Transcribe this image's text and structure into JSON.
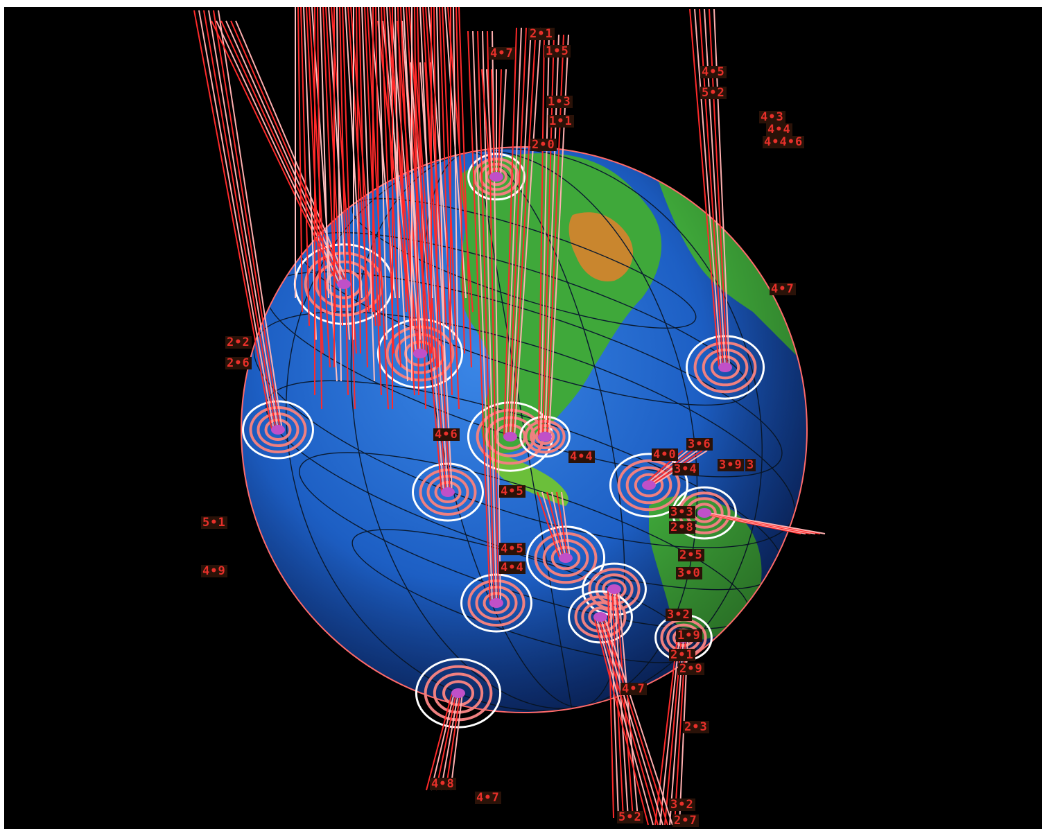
{
  "view": {
    "background_color": "#000000",
    "ocean_color": "#1d5fc4",
    "land_color": "#3fa83a",
    "highland_color": "#c9862e",
    "ring_color": "#f08080",
    "ring_highlight_color": "#ffffff",
    "stem_color": "#ff2a2a",
    "epicenter_color": "#c050c8",
    "label_color": "#e8302a"
  },
  "magnitude_labels": [
    "4•5",
    "5•2",
    "4•3",
    "4•4",
    "4•4•6",
    "4•7",
    "2•1",
    "1•5",
    "1•3",
    "1•1",
    "2•0",
    "4•7",
    "5•1",
    "4•9",
    "2•6",
    "2•2",
    "4•6",
    "4•0",
    "3•6",
    "3•4",
    "3•9",
    "3",
    "4•4",
    "4•5",
    "4•4",
    "4•5",
    "3•3",
    "2•8",
    "3•0",
    "2•5",
    "1•9",
    "2•1",
    "2•9",
    "2•3",
    "3•2",
    "4•7",
    "4•8",
    "4•7",
    "2•7",
    "3•2",
    "5•2"
  ]
}
